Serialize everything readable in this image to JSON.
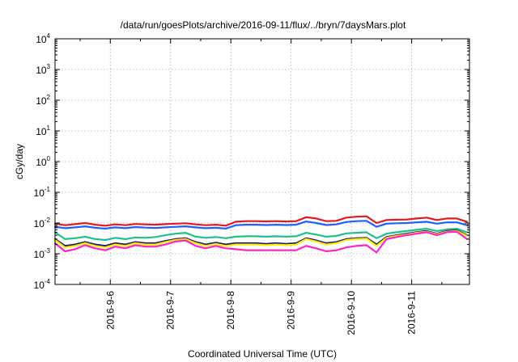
{
  "chart_data": {
    "type": "line",
    "title": "/data/run/goesPlots/archive/2016-09-11/flux/../bryn/7daysMars.plot",
    "xlabel": "Coordinated Universal Time (UTC)",
    "ylabel": "cGy/day",
    "yscale": "log",
    "ylim": [
      0.0001,
      10000
    ],
    "xlim": [
      "2016-09-05T02:00",
      "2016-09-11T23:00"
    ],
    "grid": true,
    "y_ticks": [
      {
        "base": "10",
        "exp": "-4"
      },
      {
        "base": "10",
        "exp": "-3"
      },
      {
        "base": "10",
        "exp": "-2"
      },
      {
        "base": "10",
        "exp": "-1"
      },
      {
        "base": "10",
        "exp": "0"
      },
      {
        "base": "10",
        "exp": "1"
      },
      {
        "base": "10",
        "exp": "2"
      },
      {
        "base": "10",
        "exp": "3"
      },
      {
        "base": "10",
        "exp": "4"
      }
    ],
    "x_ticks": [
      "2016-9-6",
      "2016-9-7",
      "2016-9-8",
      "2016-9-9",
      "2016-9-10",
      "2016-9-11"
    ],
    "x": [
      "2016-09-05T02:00",
      "2016-09-05T06:00",
      "2016-09-05T10:00",
      "2016-09-05T14:00",
      "2016-09-05T18:00",
      "2016-09-05T22:00",
      "2016-09-06T02:00",
      "2016-09-06T06:00",
      "2016-09-06T10:00",
      "2016-09-06T14:00",
      "2016-09-06T18:00",
      "2016-09-06T22:00",
      "2016-09-07T02:00",
      "2016-09-07T06:00",
      "2016-09-07T10:00",
      "2016-09-07T14:00",
      "2016-09-07T18:00",
      "2016-09-07T22:00",
      "2016-09-08T02:00",
      "2016-09-08T06:00",
      "2016-09-08T10:00",
      "2016-09-08T14:00",
      "2016-09-08T18:00",
      "2016-09-08T22:00",
      "2016-09-09T02:00",
      "2016-09-09T06:00",
      "2016-09-09T10:00",
      "2016-09-09T14:00",
      "2016-09-09T18:00",
      "2016-09-09T22:00",
      "2016-09-10T02:00",
      "2016-09-10T06:00",
      "2016-09-10T10:00",
      "2016-09-10T14:00",
      "2016-09-10T18:00",
      "2016-09-10T22:00",
      "2016-09-11T02:00",
      "2016-09-11T06:00",
      "2016-09-11T10:00",
      "2016-09-11T14:00",
      "2016-09-11T18:00",
      "2016-09-11T22:00"
    ],
    "series": [
      {
        "color": "#e41a1c",
        "values": [
          0.0095,
          0.0085,
          0.0092,
          0.01,
          0.0088,
          0.0082,
          0.009,
          0.0085,
          0.0093,
          0.009,
          0.0088,
          0.0092,
          0.0095,
          0.0098,
          0.009,
          0.0085,
          0.0088,
          0.0082,
          0.011,
          0.0115,
          0.0115,
          0.0113,
          0.0115,
          0.0112,
          0.0115,
          0.0155,
          0.014,
          0.0115,
          0.0118,
          0.015,
          0.016,
          0.0165,
          0.01,
          0.0125,
          0.0128,
          0.013,
          0.014,
          0.015,
          0.0125,
          0.014,
          0.014,
          0.011
        ]
      },
      {
        "color": "#1f5fff",
        "values": [
          0.0075,
          0.0068,
          0.0072,
          0.0078,
          0.007,
          0.0066,
          0.0072,
          0.0068,
          0.0074,
          0.0071,
          0.0069,
          0.0072,
          0.0075,
          0.0078,
          0.0072,
          0.0068,
          0.007,
          0.0066,
          0.0085,
          0.0088,
          0.0088,
          0.0086,
          0.0088,
          0.0086,
          0.0088,
          0.0112,
          0.01,
          0.0086,
          0.009,
          0.0108,
          0.0115,
          0.0118,
          0.0075,
          0.0095,
          0.0098,
          0.01,
          0.0105,
          0.011,
          0.0095,
          0.0105,
          0.0105,
          0.0085
        ]
      },
      {
        "color": "#1fbf8f",
        "values": [
          0.005,
          0.003,
          0.0032,
          0.0036,
          0.003,
          0.0028,
          0.0033,
          0.003,
          0.0034,
          0.0033,
          0.0035,
          0.004,
          0.0045,
          0.0048,
          0.0036,
          0.0033,
          0.0035,
          0.0032,
          0.0036,
          0.0037,
          0.0037,
          0.0036,
          0.0037,
          0.0036,
          0.0037,
          0.0048,
          0.0042,
          0.0036,
          0.0038,
          0.0046,
          0.0048,
          0.005,
          0.0032,
          0.0045,
          0.005,
          0.0055,
          0.006,
          0.0065,
          0.0055,
          0.0062,
          0.0065,
          0.005
        ]
      },
      {
        "color": "#1a1a7a",
        "values": [
          0.003,
          0.0018,
          0.002,
          0.0024,
          0.002,
          0.0018,
          0.0022,
          0.002,
          0.0024,
          0.0022,
          0.0022,
          0.0026,
          0.003,
          0.0032,
          0.0024,
          0.002,
          0.0023,
          0.002,
          0.0022,
          0.0022,
          0.0022,
          0.0021,
          0.0022,
          0.0021,
          0.0022,
          0.0032,
          0.0027,
          0.0022,
          0.0024,
          0.003,
          0.0032,
          0.0033,
          0.002,
          0.0035,
          0.004,
          0.0045,
          0.005,
          0.0055,
          0.0045,
          0.0055,
          0.0058,
          0.004
        ]
      },
      {
        "color": "#ffee00",
        "values": [
          0.0028,
          0.0016,
          0.0018,
          0.0022,
          0.0018,
          0.0016,
          0.002,
          0.0018,
          0.0022,
          0.002,
          0.002,
          0.0024,
          0.0028,
          0.003,
          0.0022,
          0.0018,
          0.0021,
          0.0018,
          0.002,
          0.002,
          0.002,
          0.0019,
          0.002,
          0.0019,
          0.002,
          0.003,
          0.0025,
          0.002,
          0.0022,
          0.0028,
          0.003,
          0.0031,
          0.0018,
          0.0033,
          0.0038,
          0.0042,
          0.0048,
          0.0052,
          0.0043,
          0.0052,
          0.0055,
          0.0038
        ]
      },
      {
        "color": "#ff22cc",
        "values": [
          0.0022,
          0.0012,
          0.0014,
          0.0019,
          0.0015,
          0.0013,
          0.0017,
          0.0015,
          0.0019,
          0.0017,
          0.0017,
          0.002,
          0.0025,
          0.0027,
          0.0018,
          0.0015,
          0.0018,
          0.0015,
          0.0014,
          0.0013,
          0.0013,
          0.0013,
          0.0013,
          0.0013,
          0.0013,
          0.0018,
          0.0015,
          0.0012,
          0.0013,
          0.0016,
          0.0018,
          0.0019,
          0.0011,
          0.003,
          0.0035,
          0.004,
          0.0045,
          0.005,
          0.004,
          0.005,
          0.0052,
          0.003
        ]
      }
    ]
  }
}
